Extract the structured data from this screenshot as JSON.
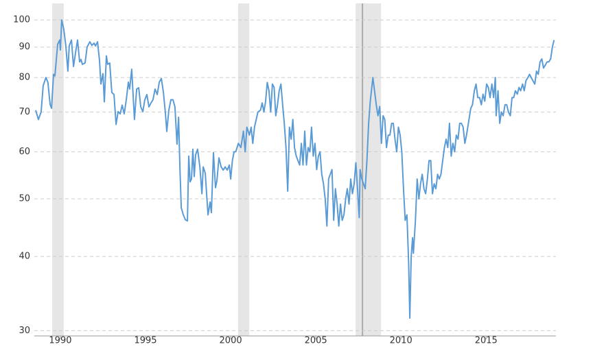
{
  "chart_data": {
    "type": "line",
    "log_scale": true,
    "grid": true,
    "color": "#5b9bd5",
    "xlim": [
      1988.47,
      2019.1
    ],
    "ylim": [
      29.4,
      106.6
    ],
    "xticks": [
      1990,
      1995,
      2000,
      2005,
      2010,
      2015
    ],
    "yticks": [
      30,
      40,
      50,
      60,
      70,
      80,
      90,
      100
    ],
    "shaded_ranges": [
      [
        1989.52,
        1990.2
      ],
      [
        2000.44,
        2001.09
      ],
      [
        2007.34,
        2008.83
      ]
    ],
    "vline": 2007.74,
    "x": [
      1988.55,
      1988.71,
      1988.87,
      1988.99,
      1989.15,
      1989.27,
      1989.4,
      1989.48,
      1989.6,
      1989.68,
      1989.84,
      1989.96,
      1990.0,
      1990.08,
      1990.2,
      1990.32,
      1990.44,
      1990.52,
      1990.65,
      1990.77,
      1990.89,
      1991.01,
      1991.13,
      1991.21,
      1991.29,
      1991.45,
      1991.57,
      1991.73,
      1991.85,
      1991.98,
      1992.06,
      1992.18,
      1992.3,
      1992.38,
      1992.5,
      1992.58,
      1992.7,
      1992.78,
      1992.9,
      1993.02,
      1993.15,
      1993.27,
      1993.39,
      1993.51,
      1993.63,
      1993.75,
      1993.87,
      1993.99,
      1994.07,
      1994.19,
      1994.27,
      1994.35,
      1994.48,
      1994.6,
      1994.72,
      1994.84,
      1994.96,
      1995.08,
      1995.2,
      1995.32,
      1995.44,
      1995.56,
      1995.69,
      1995.81,
      1995.93,
      1996.05,
      1996.17,
      1996.25,
      1996.37,
      1996.49,
      1996.61,
      1996.73,
      1996.85,
      1996.94,
      1997.02,
      1997.1,
      1997.22,
      1997.34,
      1997.46,
      1997.54,
      1997.62,
      1997.7,
      1997.78,
      1997.86,
      1997.94,
      1998.06,
      1998.19,
      1998.31,
      1998.39,
      1998.51,
      1998.59,
      1998.67,
      1998.79,
      1998.87,
      1998.99,
      1999.11,
      1999.19,
      1999.31,
      1999.44,
      1999.56,
      1999.68,
      1999.8,
      1999.92,
      2000.0,
      2000.1,
      2000.2,
      2000.3,
      2000.45,
      2000.6,
      2000.75,
      2000.85,
      2000.95,
      2001.1,
      2001.2,
      2001.3,
      2001.4,
      2001.5,
      2001.6,
      2001.75,
      2001.85,
      2001.95,
      2002.05,
      2002.15,
      2002.25,
      2002.35,
      2002.45,
      2002.55,
      2002.65,
      2002.75,
      2002.85,
      2002.95,
      2003.05,
      2003.15,
      2003.25,
      2003.35,
      2003.45,
      2003.55,
      2003.65,
      2003.75,
      2003.85,
      2003.95,
      2004.05,
      2004.15,
      2004.25,
      2004.35,
      2004.45,
      2004.55,
      2004.65,
      2004.75,
      2004.85,
      2004.95,
      2005.05,
      2005.15,
      2005.25,
      2005.35,
      2005.45,
      2005.55,
      2005.65,
      2005.75,
      2005.85,
      2005.95,
      2006.05,
      2006.15,
      2006.25,
      2006.35,
      2006.45,
      2006.55,
      2006.65,
      2006.75,
      2006.85,
      2006.95,
      2007.05,
      2007.15,
      2007.25,
      2007.35,
      2007.45,
      2007.55,
      2007.6,
      2007.7,
      2007.8,
      2007.9,
      2008.0,
      2008.1,
      2008.2,
      2008.35,
      2008.45,
      2008.55,
      2008.65,
      2008.75,
      2008.85,
      2008.95,
      2009.05,
      2009.15,
      2009.25,
      2009.35,
      2009.45,
      2009.55,
      2009.65,
      2009.75,
      2009.85,
      2009.95,
      2010.05,
      2010.15,
      2010.25,
      2010.35,
      2010.45,
      2010.52,
      2010.6,
      2010.68,
      2010.73,
      2010.85,
      2010.95,
      2011.05,
      2011.15,
      2011.25,
      2011.35,
      2011.45,
      2011.55,
      2011.65,
      2011.75,
      2011.85,
      2011.95,
      2012.05,
      2012.15,
      2012.25,
      2012.35,
      2012.45,
      2012.55,
      2012.65,
      2012.75,
      2012.85,
      2012.95,
      2013.05,
      2013.15,
      2013.25,
      2013.35,
      2013.45,
      2013.55,
      2013.65,
      2013.75,
      2013.85,
      2014.1,
      2014.2,
      2014.31,
      2014.41,
      2014.51,
      2014.62,
      2014.72,
      2014.82,
      2014.92,
      2015.03,
      2015.13,
      2015.23,
      2015.34,
      2015.44,
      2015.54,
      2015.59,
      2015.7,
      2015.8,
      2015.9,
      2016.0,
      2016.11,
      2016.21,
      2016.31,
      2016.42,
      2016.52,
      2016.62,
      2016.72,
      2016.83,
      2016.93,
      2017.03,
      2017.14,
      2017.24,
      2017.34,
      2017.45,
      2017.55,
      2017.65,
      2017.75,
      2017.86,
      2017.96,
      2018.06,
      2018.17,
      2018.27,
      2018.37,
      2018.48,
      2018.58,
      2018.68,
      2018.79,
      2018.89,
      2018.99
    ],
    "values": [
      70.5,
      68,
      70,
      77.5,
      80,
      78.5,
      72,
      71,
      81,
      80.5,
      91,
      92.5,
      89,
      100,
      96.5,
      90.5,
      82,
      90.5,
      92.5,
      83.5,
      88,
      92.5,
      85,
      85.8,
      84.2,
      84.6,
      90,
      91.9,
      90.6,
      91.4,
      90.4,
      91.9,
      85.4,
      78,
      81.2,
      72.8,
      87,
      84.2,
      84.6,
      75.5,
      74.9,
      66.7,
      70.1,
      69.5,
      71.9,
      69.5,
      73.4,
      78.6,
      76.5,
      82.6,
      74.9,
      68,
      76.5,
      76.9,
      71.4,
      70.1,
      73.4,
      74.9,
      71.4,
      72.5,
      73.4,
      76.5,
      74.9,
      78.6,
      79.7,
      75.5,
      69.5,
      64.9,
      70.5,
      73.4,
      73.4,
      71.4,
      61.8,
      68.6,
      56.6,
      48.3,
      47,
      46.1,
      45.9,
      59,
      53.4,
      54,
      60.6,
      54.5,
      59.3,
      60.6,
      56.6,
      51,
      56.6,
      55.2,
      50.8,
      47,
      49.4,
      47.4,
      59.8,
      52.2,
      53.6,
      58.6,
      56.6,
      55.9,
      56.6,
      55.9,
      57,
      54,
      58,
      60,
      60,
      62,
      61,
      65,
      60,
      66,
      64,
      66,
      62,
      66,
      68,
      70,
      70.5,
      72.5,
      70,
      73,
      78.5,
      76,
      70,
      78,
      77,
      69,
      72,
      76,
      78,
      72,
      67,
      61,
      51.5,
      66,
      63,
      68,
      61,
      59,
      58,
      57,
      62,
      57,
      65,
      57,
      61,
      60,
      66,
      59,
      62,
      56,
      59,
      60,
      55,
      53,
      50,
      45,
      54,
      55,
      56,
      46,
      52,
      49,
      45,
      49,
      46,
      47,
      50,
      52,
      49,
      54,
      51,
      53,
      57.5,
      52,
      46.5,
      56,
      54,
      53,
      52,
      58,
      67,
      73,
      80,
      76,
      72,
      69,
      71.5,
      62,
      69,
      68,
      61,
      64,
      64,
      67,
      67,
      63,
      60,
      66,
      64,
      60,
      52,
      46,
      47,
      39,
      31.5,
      40,
      43,
      40.5,
      46,
      54,
      50,
      53,
      55,
      52,
      51,
      54,
      58,
      58,
      51,
      53,
      52,
      55,
      54,
      55,
      58,
      61,
      63,
      61,
      67,
      59,
      62,
      60,
      64,
      63,
      67,
      67,
      66,
      62,
      64,
      71,
      72,
      76,
      78,
      74,
      74,
      72,
      75,
      73,
      78,
      77,
      74,
      78,
      74,
      80,
      69,
      76,
      67,
      70,
      69,
      72,
      72,
      70,
      69,
      74,
      74,
      76,
      75,
      77,
      76,
      78,
      76,
      79,
      80,
      81,
      80,
      79,
      78,
      82,
      81,
      85,
      86,
      83,
      84,
      85,
      85,
      86,
      90,
      92.5
    ]
  }
}
